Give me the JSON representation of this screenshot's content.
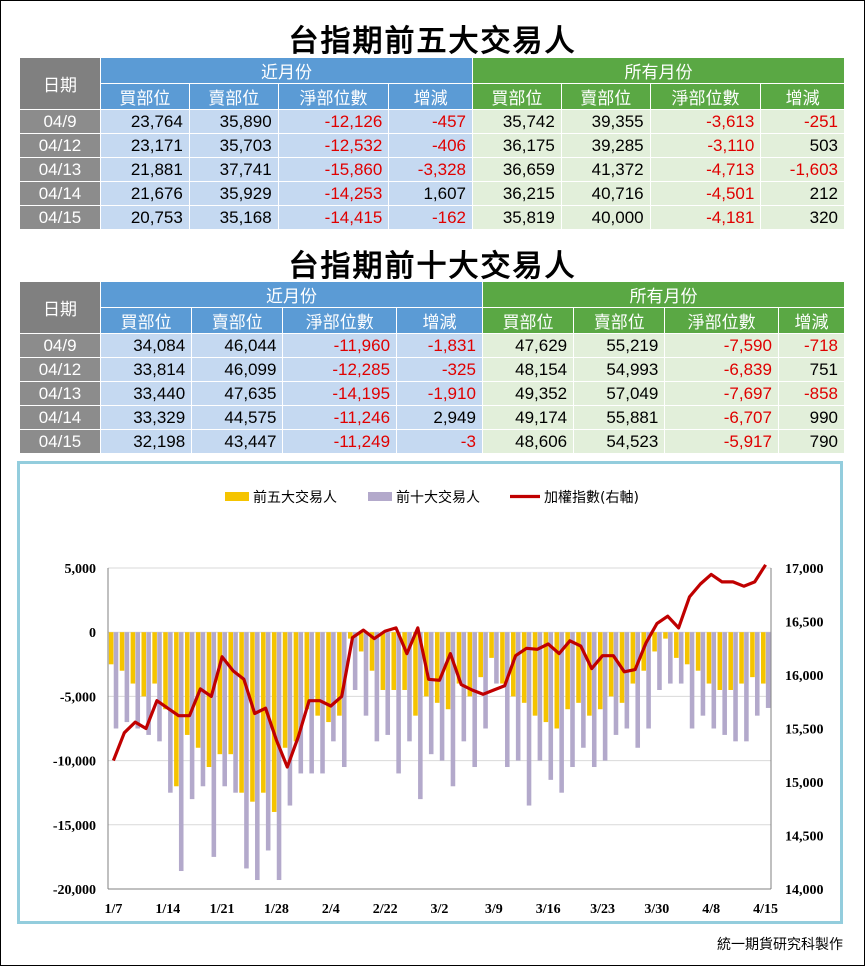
{
  "top5": {
    "title": "台指期前五大交易人",
    "header": {
      "date": "日期",
      "near": "近月份",
      "all": "所有月份",
      "cols": [
        "買部位",
        "賣部位",
        "淨部位數",
        "增減",
        "買部位",
        "賣部位",
        "淨部位數",
        "增減"
      ]
    },
    "rows": [
      {
        "date": "04/9",
        "cells": [
          "23,764",
          "35,890",
          "-12,126",
          "-457",
          "35,742",
          "39,355",
          "-3,613",
          "-251"
        ]
      },
      {
        "date": "04/12",
        "cells": [
          "23,171",
          "35,703",
          "-12,532",
          "-406",
          "36,175",
          "39,285",
          "-3,110",
          "503"
        ]
      },
      {
        "date": "04/13",
        "cells": [
          "21,881",
          "37,741",
          "-15,860",
          "-3,328",
          "36,659",
          "41,372",
          "-4,713",
          "-1,603"
        ]
      },
      {
        "date": "04/14",
        "cells": [
          "21,676",
          "35,929",
          "-14,253",
          "1,607",
          "36,215",
          "40,716",
          "-4,501",
          "212"
        ]
      },
      {
        "date": "04/15",
        "cells": [
          "20,753",
          "35,168",
          "-14,415",
          "-162",
          "35,819",
          "40,000",
          "-4,181",
          "320"
        ]
      }
    ]
  },
  "top10": {
    "title": "台指期前十大交易人",
    "header": {
      "date": "日期",
      "near": "近月份",
      "all": "所有月份",
      "cols": [
        "買部位",
        "賣部位",
        "淨部位數",
        "增減",
        "買部位",
        "賣部位",
        "淨部位數",
        "增減"
      ]
    },
    "rows": [
      {
        "date": "04/9",
        "cells": [
          "34,084",
          "46,044",
          "-11,960",
          "-1,831",
          "47,629",
          "55,219",
          "-7,590",
          "-718"
        ]
      },
      {
        "date": "04/12",
        "cells": [
          "33,814",
          "46,099",
          "-12,285",
          "-325",
          "48,154",
          "54,993",
          "-6,839",
          "751"
        ]
      },
      {
        "date": "04/13",
        "cells": [
          "33,440",
          "47,635",
          "-14,195",
          "-1,910",
          "49,352",
          "57,049",
          "-7,697",
          "-858"
        ]
      },
      {
        "date": "04/14",
        "cells": [
          "33,329",
          "44,575",
          "-11,246",
          "2,949",
          "49,174",
          "55,881",
          "-6,707",
          "990"
        ]
      },
      {
        "date": "04/15",
        "cells": [
          "32,198",
          "43,447",
          "-11,249",
          "-3",
          "48,606",
          "54,523",
          "-5,917",
          "790"
        ]
      }
    ]
  },
  "colors": {
    "top5": "#f5c400",
    "top10": "#b3a9cb",
    "index": "#c00000",
    "negative": "#e00000"
  },
  "chart_data": {
    "type": "bar",
    "legend_position": "top",
    "grid": true,
    "categories": [
      "1/7",
      "1/8",
      "1/11",
      "1/12",
      "1/13",
      "1/14",
      "1/15",
      "1/18",
      "1/19",
      "1/20",
      "1/21",
      "1/22",
      "1/25",
      "1/26",
      "1/27",
      "1/28",
      "1/29",
      "2/1",
      "2/2",
      "2/3",
      "2/4",
      "2/5",
      "2/17",
      "2/18",
      "2/19",
      "2/22",
      "2/23",
      "2/24",
      "2/25",
      "2/26",
      "3/2",
      "3/3",
      "3/4",
      "3/5",
      "3/8",
      "3/9",
      "3/10",
      "3/11",
      "3/12",
      "3/15",
      "3/16",
      "3/17",
      "3/18",
      "3/19",
      "3/22",
      "3/23",
      "3/24",
      "3/25",
      "3/26",
      "3/29",
      "3/30",
      "3/31",
      "4/1",
      "4/6",
      "4/7",
      "4/8",
      "4/9",
      "4/12",
      "4/13",
      "4/14",
      "4/15"
    ],
    "x_tick_labels": [
      "1/7",
      "1/14",
      "1/21",
      "1/28",
      "2/4",
      "2/22",
      "3/2",
      "3/9",
      "3/16",
      "3/23",
      "3/30",
      "4/8",
      "4/15"
    ],
    "y_left": {
      "ylim": [
        -20000,
        5000
      ],
      "ticks": [
        "5,000",
        "0",
        "-5,000",
        "-10,000",
        "-15,000",
        "-20,000"
      ]
    },
    "y_right": {
      "ylim": [
        14000,
        17000
      ],
      "ticks": [
        "17,000",
        "16,500",
        "16,000",
        "15,500",
        "15,000",
        "14,500",
        "14,000"
      ]
    },
    "series": [
      {
        "name": "前五大交易人",
        "type": "bar",
        "axis": "left",
        "values": [
          -2500,
          -3000,
          -4000,
          -5000,
          -4000,
          -6000,
          -12000,
          -8000,
          -9000,
          -10500,
          -9500,
          -9500,
          -12500,
          -13200,
          -12500,
          -14000,
          -9000,
          -8500,
          -6000,
          -6500,
          -7000,
          -6500,
          -500,
          -1500,
          -3000,
          -4500,
          -4500,
          -4500,
          -6500,
          -5000,
          -5500,
          -6000,
          -4000,
          -5000,
          -3500,
          -2000,
          -4000,
          -5000,
          -5500,
          -6500,
          -7000,
          -7500,
          -6000,
          -5500,
          -6500,
          -6000,
          -5000,
          -5500,
          -4000,
          -3000,
          -1500,
          -500,
          -2000,
          -2500,
          -3000,
          -4000,
          -4500,
          -4500,
          -4000,
          -3500,
          -4000
        ]
      },
      {
        "name": "前十大交易人",
        "type": "bar",
        "axis": "left",
        "values": [
          -7500,
          -7000,
          -7500,
          -8000,
          -8500,
          -12500,
          -18600,
          -13000,
          -12000,
          -17500,
          -12000,
          -12500,
          -18400,
          -19300,
          -17000,
          -19300,
          -13500,
          -11000,
          -11000,
          -11000,
          -8500,
          -10500,
          -4500,
          -6500,
          -8500,
          -8000,
          -11000,
          -8500,
          -13000,
          -9500,
          -10000,
          -12000,
          -8500,
          -10500,
          -7500,
          -4000,
          -10500,
          -10000,
          -13500,
          -10000,
          -11500,
          -12500,
          -10500,
          -9000,
          -10500,
          -10000,
          -8000,
          -7500,
          -9000,
          -7500,
          -4500,
          -4000,
          -4000,
          -7500,
          -6500,
          -7500,
          -8000,
          -8500,
          -8500,
          -6500,
          -5900
        ]
      },
      {
        "name": "加權指數(右軸)",
        "type": "line",
        "axis": "right",
        "values": [
          15200,
          15460,
          15560,
          15500,
          15760,
          15690,
          15620,
          15620,
          15870,
          15800,
          16170,
          16040,
          15960,
          15640,
          15690,
          15390,
          15140,
          15420,
          15760,
          15760,
          15710,
          15800,
          16350,
          16420,
          16340,
          16410,
          16440,
          16200,
          16440,
          15960,
          15950,
          16200,
          15910,
          15860,
          15820,
          15860,
          15900,
          16180,
          16250,
          16240,
          16290,
          16200,
          16320,
          16270,
          16060,
          16180,
          16180,
          16030,
          16050,
          16300,
          16480,
          16550,
          16440,
          16730,
          16850,
          16940,
          16870,
          16870,
          16830,
          16870,
          17030
        ]
      }
    ]
  },
  "credit": "統一期貨研究科製作"
}
